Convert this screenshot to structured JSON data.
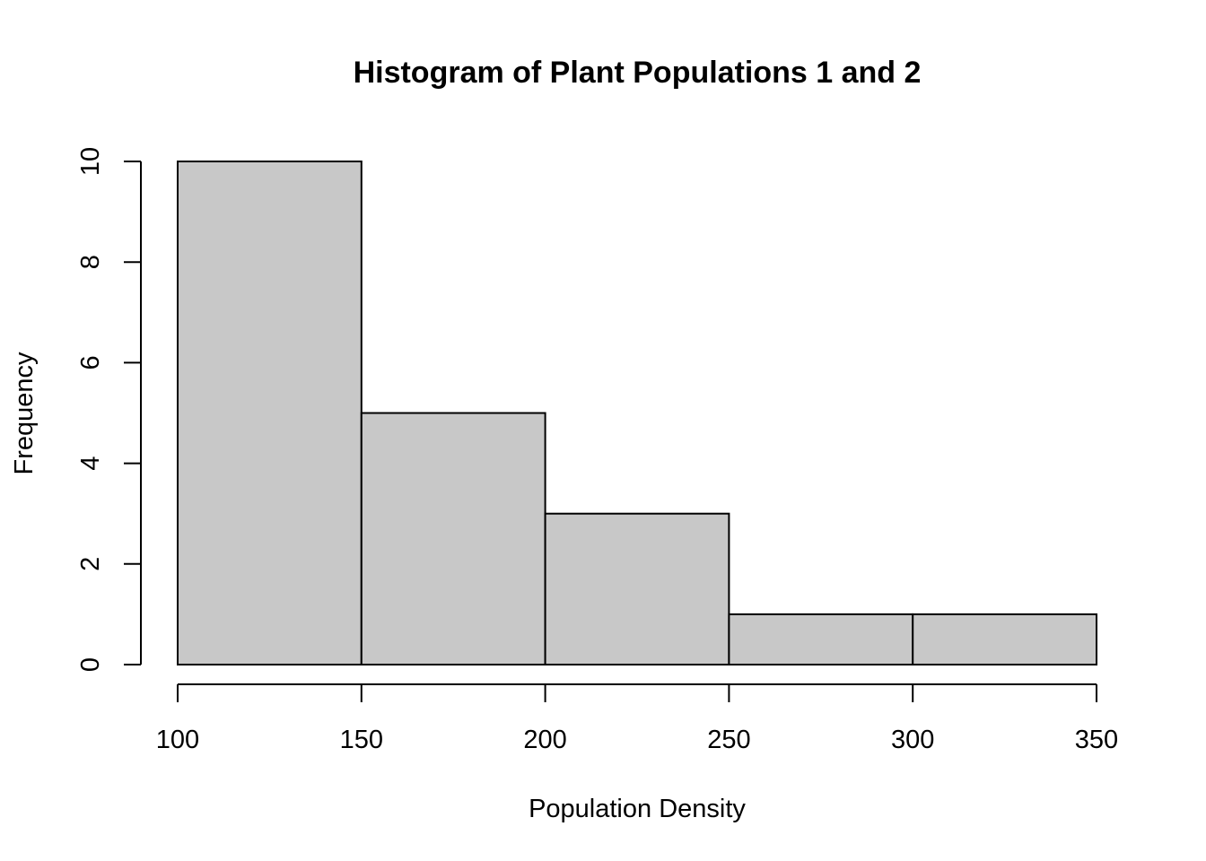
{
  "chart_data": {
    "type": "bar",
    "title": "Histogram of Plant Populations 1 and 2",
    "xlabel": "Population Density",
    "ylabel": "Frequency",
    "bins": [
      {
        "x0": 100,
        "x1": 150,
        "count": 10
      },
      {
        "x0": 150,
        "x1": 200,
        "count": 5
      },
      {
        "x0": 200,
        "x1": 250,
        "count": 3
      },
      {
        "x0": 250,
        "x1": 300,
        "count": 1
      },
      {
        "x0": 300,
        "x1": 350,
        "count": 1
      }
    ],
    "xlim": [
      100,
      350
    ],
    "ylim": [
      0,
      10
    ],
    "x_ticks": [
      "100",
      "150",
      "200",
      "250",
      "300",
      "350"
    ],
    "y_ticks": [
      "0",
      "2",
      "4",
      "6",
      "8",
      "10"
    ],
    "grid": false,
    "bar_color": "#c8c8c8"
  }
}
